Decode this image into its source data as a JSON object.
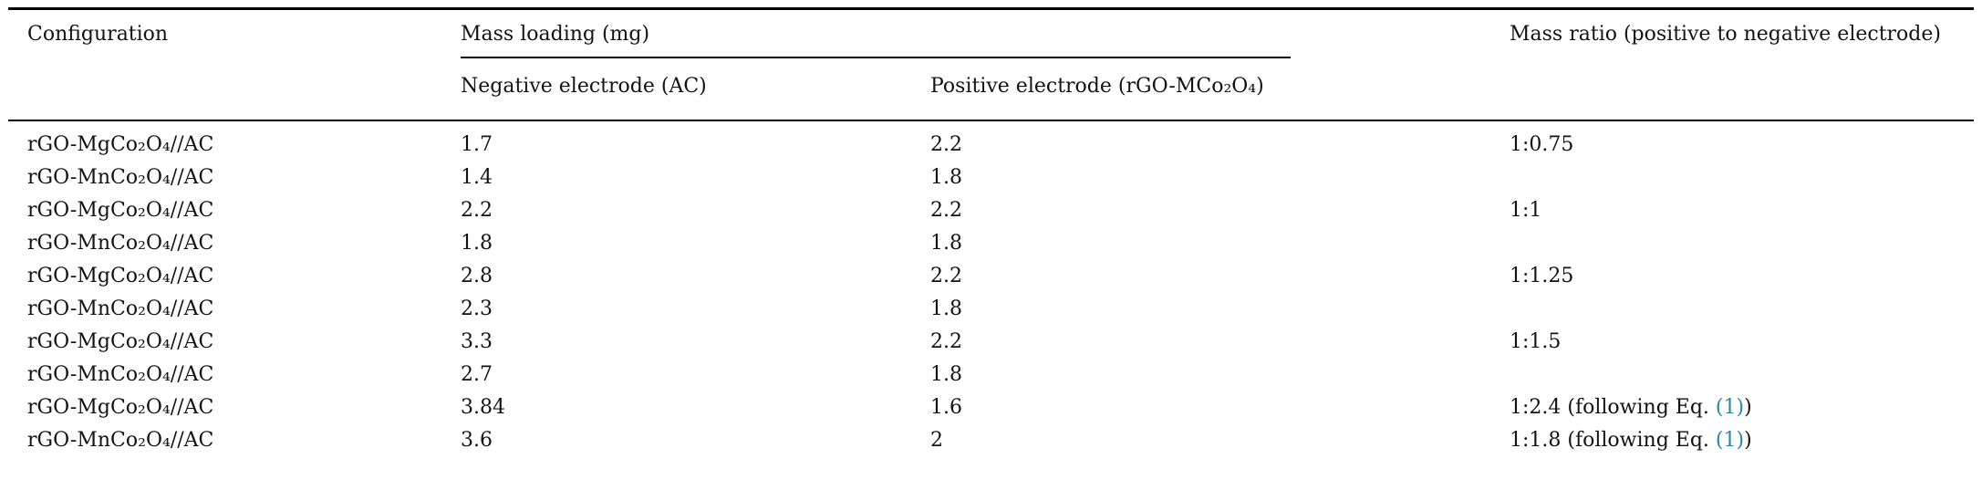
{
  "page": {
    "background": "#ffffff",
    "text_color": "#131313",
    "link_color": "#2e86ab"
  },
  "table": {
    "headers": {
      "configuration": "Configuration",
      "mass_loading_group": "Mass loading (mg)",
      "negative_electrode": "Negative electrode (AC)",
      "positive_electrode": "Positive electrode (rGO-MCo₂O₄)",
      "mass_ratio": "Mass ratio (positive to negative electrode)"
    },
    "rows": [
      {
        "config": "rGO-MgCo₂O₄//AC",
        "negative": "1.7",
        "positive": "2.2",
        "ratio_pre": "1:0.75",
        "ratio_link": "",
        "ratio_post": ""
      },
      {
        "config": "rGO-MnCo₂O₄//AC",
        "negative": "1.4",
        "positive": "1.8",
        "ratio_pre": "",
        "ratio_link": "",
        "ratio_post": ""
      },
      {
        "config": "rGO-MgCo₂O₄//AC",
        "negative": "2.2",
        "positive": "2.2",
        "ratio_pre": "1:1",
        "ratio_link": "",
        "ratio_post": ""
      },
      {
        "config": "rGO-MnCo₂O₄//AC",
        "negative": "1.8",
        "positive": "1.8",
        "ratio_pre": "",
        "ratio_link": "",
        "ratio_post": ""
      },
      {
        "config": "rGO-MgCo₂O₄//AC",
        "negative": "2.8",
        "positive": "2.2",
        "ratio_pre": "1:1.25",
        "ratio_link": "",
        "ratio_post": ""
      },
      {
        "config": "rGO-MnCo₂O₄//AC",
        "negative": "2.3",
        "positive": "1.8",
        "ratio_pre": "",
        "ratio_link": "",
        "ratio_post": ""
      },
      {
        "config": "rGO-MgCo₂O₄//AC",
        "negative": "3.3",
        "positive": "2.2",
        "ratio_pre": "1:1.5",
        "ratio_link": "",
        "ratio_post": ""
      },
      {
        "config": "rGO-MnCo₂O₄//AC",
        "negative": "2.7",
        "positive": "1.8",
        "ratio_pre": "",
        "ratio_link": "",
        "ratio_post": ""
      },
      {
        "config": "rGO-MgCo₂O₄//AC",
        "negative": "3.84",
        "positive": "1.6",
        "ratio_pre": "1:2.4 (following Eq. ",
        "ratio_link": "(1)",
        "ratio_post": ")"
      },
      {
        "config": "rGO-MnCo₂O₄//AC",
        "negative": "3.6",
        "positive": "2",
        "ratio_pre": "1:1.8 (following Eq. ",
        "ratio_link": "(1)",
        "ratio_post": ")"
      }
    ]
  }
}
